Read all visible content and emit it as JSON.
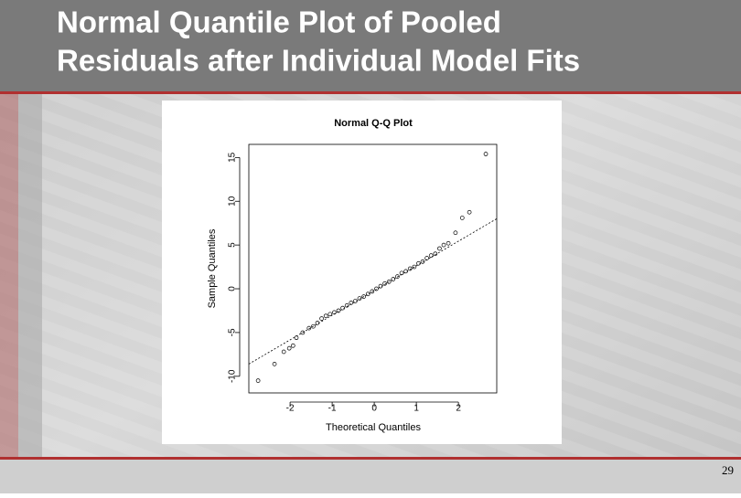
{
  "slide": {
    "title_lines": [
      "Normal Quantile Plot of  Pooled",
      "Residuals after Individual Model Fits"
    ],
    "page_number": "29"
  },
  "chart_data": {
    "type": "scatter",
    "title": "Normal Q-Q Plot",
    "x_label": "Theoretical Quantiles",
    "y_label": "Sample Quantiles",
    "x": [
      -2.76,
      -2.37,
      -2.15,
      -2.02,
      -1.93,
      -1.85,
      -1.7,
      -1.55,
      -1.45,
      -1.35,
      -1.25,
      -1.15,
      -1.05,
      -0.95,
      -0.85,
      -0.75,
      -0.65,
      -0.55,
      -0.45,
      -0.35,
      -0.25,
      -0.15,
      -0.05,
      0.05,
      0.15,
      0.25,
      0.35,
      0.45,
      0.55,
      0.65,
      0.75,
      0.85,
      0.95,
      1.05,
      1.15,
      1.25,
      1.35,
      1.45,
      1.55,
      1.65,
      1.76,
      1.93,
      2.09,
      2.26,
      2.65
    ],
    "values": [
      -10.5,
      -8.6,
      -7.2,
      -6.8,
      -6.5,
      -5.6,
      -5.0,
      -4.5,
      -4.3,
      -3.9,
      -3.4,
      -3.1,
      -2.9,
      -2.7,
      -2.5,
      -2.2,
      -1.9,
      -1.6,
      -1.4,
      -1.1,
      -0.9,
      -0.6,
      -0.3,
      0.0,
      0.3,
      0.6,
      0.8,
      1.1,
      1.4,
      1.8,
      2.0,
      2.3,
      2.5,
      2.9,
      3.1,
      3.5,
      3.8,
      4.0,
      4.6,
      5.0,
      5.2,
      6.4,
      8.1,
      8.75,
      15.4
    ],
    "reference_line": {
      "intercept": -0.2,
      "slope": 2.82
    },
    "xlim": [
      -2.98,
      2.91
    ],
    "ylim": [
      -11.9,
      16.5
    ],
    "xticks": [
      -2,
      -1,
      0,
      1,
      2
    ],
    "yticks": [
      -10,
      -5,
      0,
      5,
      10,
      15
    ]
  }
}
